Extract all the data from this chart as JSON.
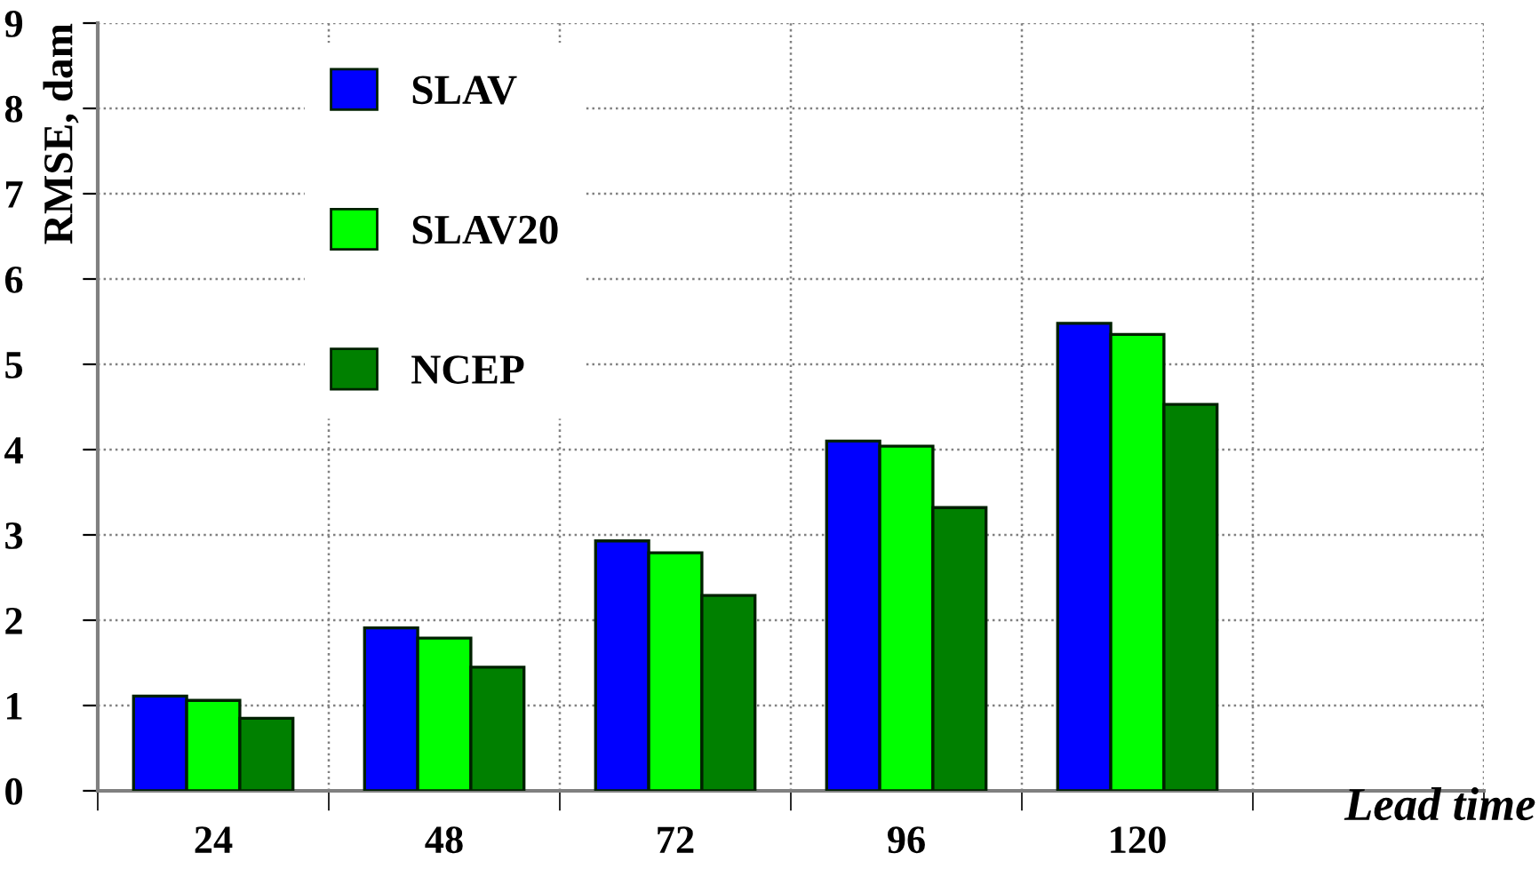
{
  "chart_data": {
    "type": "bar",
    "xlabel": "Lead time",
    "ylabel": "RMSE, dam",
    "categories": [
      "24",
      "48",
      "72",
      "96",
      "120",
      null
    ],
    "series": [
      {
        "name": "SLAV",
        "color": "#0000ff",
        "values": [
          1.11,
          1.91,
          2.93,
          4.1,
          5.48,
          null
        ]
      },
      {
        "name": "SLAV20",
        "color": "#00ff00",
        "values": [
          1.06,
          1.79,
          2.79,
          4.04,
          5.35,
          null
        ]
      },
      {
        "name": "NCEP",
        "color": "#008000",
        "values": [
          0.85,
          1.45,
          2.29,
          3.32,
          4.53,
          null
        ]
      }
    ],
    "ylim": [
      0,
      9
    ],
    "yticks": [
      0,
      1,
      2,
      3,
      4,
      5,
      6,
      7,
      8,
      9
    ],
    "grid": true,
    "legend": "top left"
  }
}
